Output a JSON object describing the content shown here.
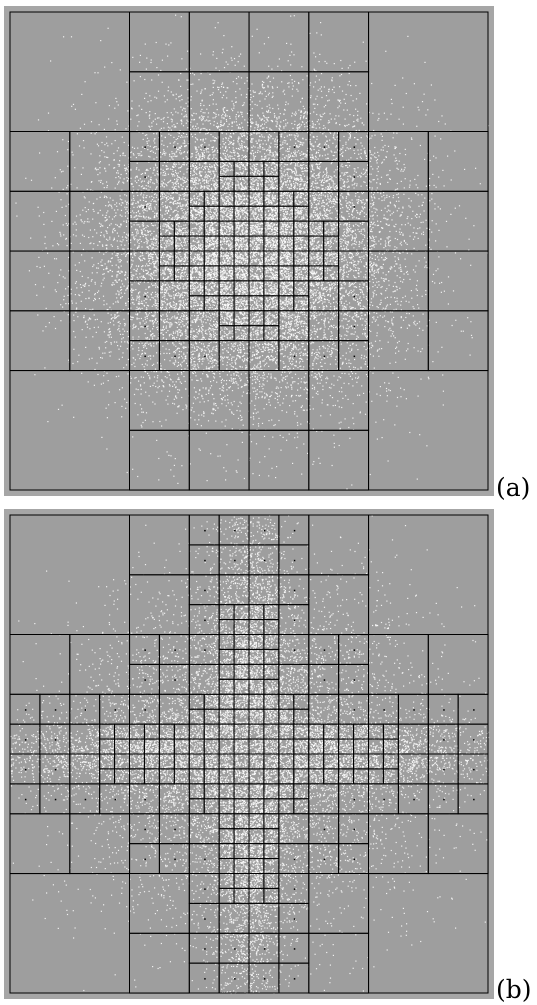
{
  "figure": {
    "panels": [
      {
        "id": "a",
        "label": "(a)",
        "structure": "quadtree-block-decomposition",
        "density_pattern": "radial-peak-center"
      },
      {
        "id": "b",
        "label": "(b)",
        "structure": "quadtree-block-decomposition",
        "density_pattern": "cross-shaped"
      }
    ]
  },
  "colors": {
    "frame": "#a6a6a6",
    "background": "#9e9e9e",
    "grid_line": "#000000",
    "points": "#ffffff"
  }
}
